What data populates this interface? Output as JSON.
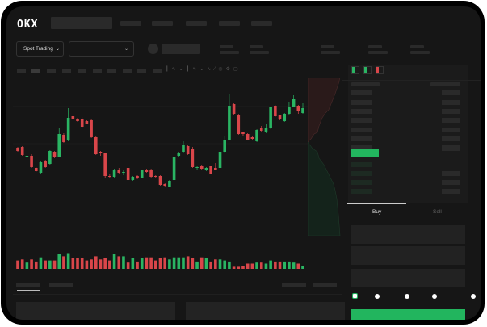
{
  "header": {
    "logo": "OKX"
  },
  "toolbar": {
    "market_dropdown": "Spot Trading"
  },
  "trade_panel": {
    "tabs": [
      "Buy",
      "Sell"
    ],
    "active_tab": "Buy",
    "slider_percent": 0,
    "slider_stops": 5
  },
  "colors": {
    "up": "#2ab563",
    "down": "#d9464a",
    "accent": "#22b55e",
    "background": "#161616"
  },
  "chart_data": {
    "type": "candlestick",
    "ylim": [
      10,
      210
    ],
    "candles": [
      [
        118,
        119,
        113,
        114
      ],
      [
        119,
        120,
        108,
        109
      ],
      [
        107,
        108,
        107,
        108
      ],
      [
        108,
        110,
        93,
        94
      ],
      [
        93,
        94,
        88,
        89
      ],
      [
        87,
        101,
        86,
        100
      ],
      [
        102,
        103,
        93,
        94
      ],
      [
        98,
        115,
        97,
        114
      ],
      [
        113,
        114,
        105,
        106
      ],
      [
        107,
        143,
        106,
        135
      ],
      [
        134,
        136,
        124,
        125
      ],
      [
        127,
        167,
        126,
        155
      ],
      [
        157,
        158,
        152,
        153
      ],
      [
        154,
        155,
        150,
        151
      ],
      [
        154,
        156,
        143,
        144
      ],
      [
        151,
        152,
        147,
        148
      ],
      [
        152,
        153,
        130,
        131
      ],
      [
        131,
        132,
        109,
        110
      ],
      [
        113,
        114,
        108,
        111
      ],
      [
        111,
        112,
        80,
        83
      ],
      [
        83,
        85,
        81,
        82
      ],
      [
        82,
        92,
        80,
        91
      ],
      [
        91,
        93,
        86,
        87
      ],
      [
        87,
        90,
        84,
        88
      ],
      [
        93,
        94,
        76,
        78
      ],
      [
        78,
        83,
        77,
        82
      ],
      [
        83,
        84,
        79,
        80
      ],
      [
        81,
        91,
        80,
        90
      ],
      [
        91,
        92,
        87,
        88
      ],
      [
        91,
        92,
        81,
        82
      ],
      [
        83,
        84,
        81,
        82
      ],
      [
        83,
        84,
        71,
        72
      ],
      [
        73,
        74,
        70,
        71
      ],
      [
        70,
        78,
        69,
        77
      ],
      [
        78,
        111,
        77,
        107
      ],
      [
        108,
        113,
        107,
        112
      ],
      [
        113,
        126,
        112,
        121
      ],
      [
        120,
        121,
        109,
        110
      ],
      [
        116,
        119,
        93,
        94
      ],
      [
        93,
        96,
        90,
        94
      ],
      [
        96,
        97,
        91,
        92
      ],
      [
        90,
        94,
        89,
        93
      ],
      [
        95,
        96,
        85,
        86
      ],
      [
        93,
        99,
        90,
        91
      ],
      [
        93,
        117,
        92,
        113
      ],
      [
        113,
        132,
        112,
        128
      ],
      [
        128,
        185,
        127,
        170
      ],
      [
        172,
        174,
        158,
        160
      ],
      [
        159,
        160,
        134,
        135
      ],
      [
        137,
        138,
        133,
        135
      ],
      [
        135,
        136,
        127,
        128
      ],
      [
        131,
        132,
        128,
        129
      ],
      [
        126,
        141,
        125,
        140
      ],
      [
        142,
        145,
        138,
        139
      ],
      [
        137,
        147,
        136,
        142
      ],
      [
        142,
        169,
        141,
        168
      ],
      [
        170,
        171,
        156,
        157
      ],
      [
        158,
        159,
        152,
        153
      ],
      [
        151,
        161,
        150,
        160
      ],
      [
        160,
        175,
        159,
        169
      ],
      [
        169,
        183,
        168,
        178
      ],
      [
        170,
        171,
        160,
        163
      ],
      [
        161,
        173,
        160,
        167
      ]
    ],
    "volume": [
      8,
      9,
      6,
      9,
      7,
      11,
      8,
      8,
      8,
      14,
      12,
      15,
      10,
      10,
      10,
      8,
      9,
      12,
      9,
      10,
      8,
      14,
      12,
      12,
      6,
      10,
      7,
      10,
      11,
      11,
      8,
      10,
      11,
      9,
      11,
      11,
      11,
      12,
      10,
      7,
      11,
      10,
      7,
      9,
      9,
      8,
      7,
      2,
      2,
      3,
      5,
      5,
      6,
      6,
      5,
      8,
      7,
      7,
      7,
      7,
      6,
      5,
      3
    ],
    "volume_ylim": [
      0,
      20
    ]
  }
}
